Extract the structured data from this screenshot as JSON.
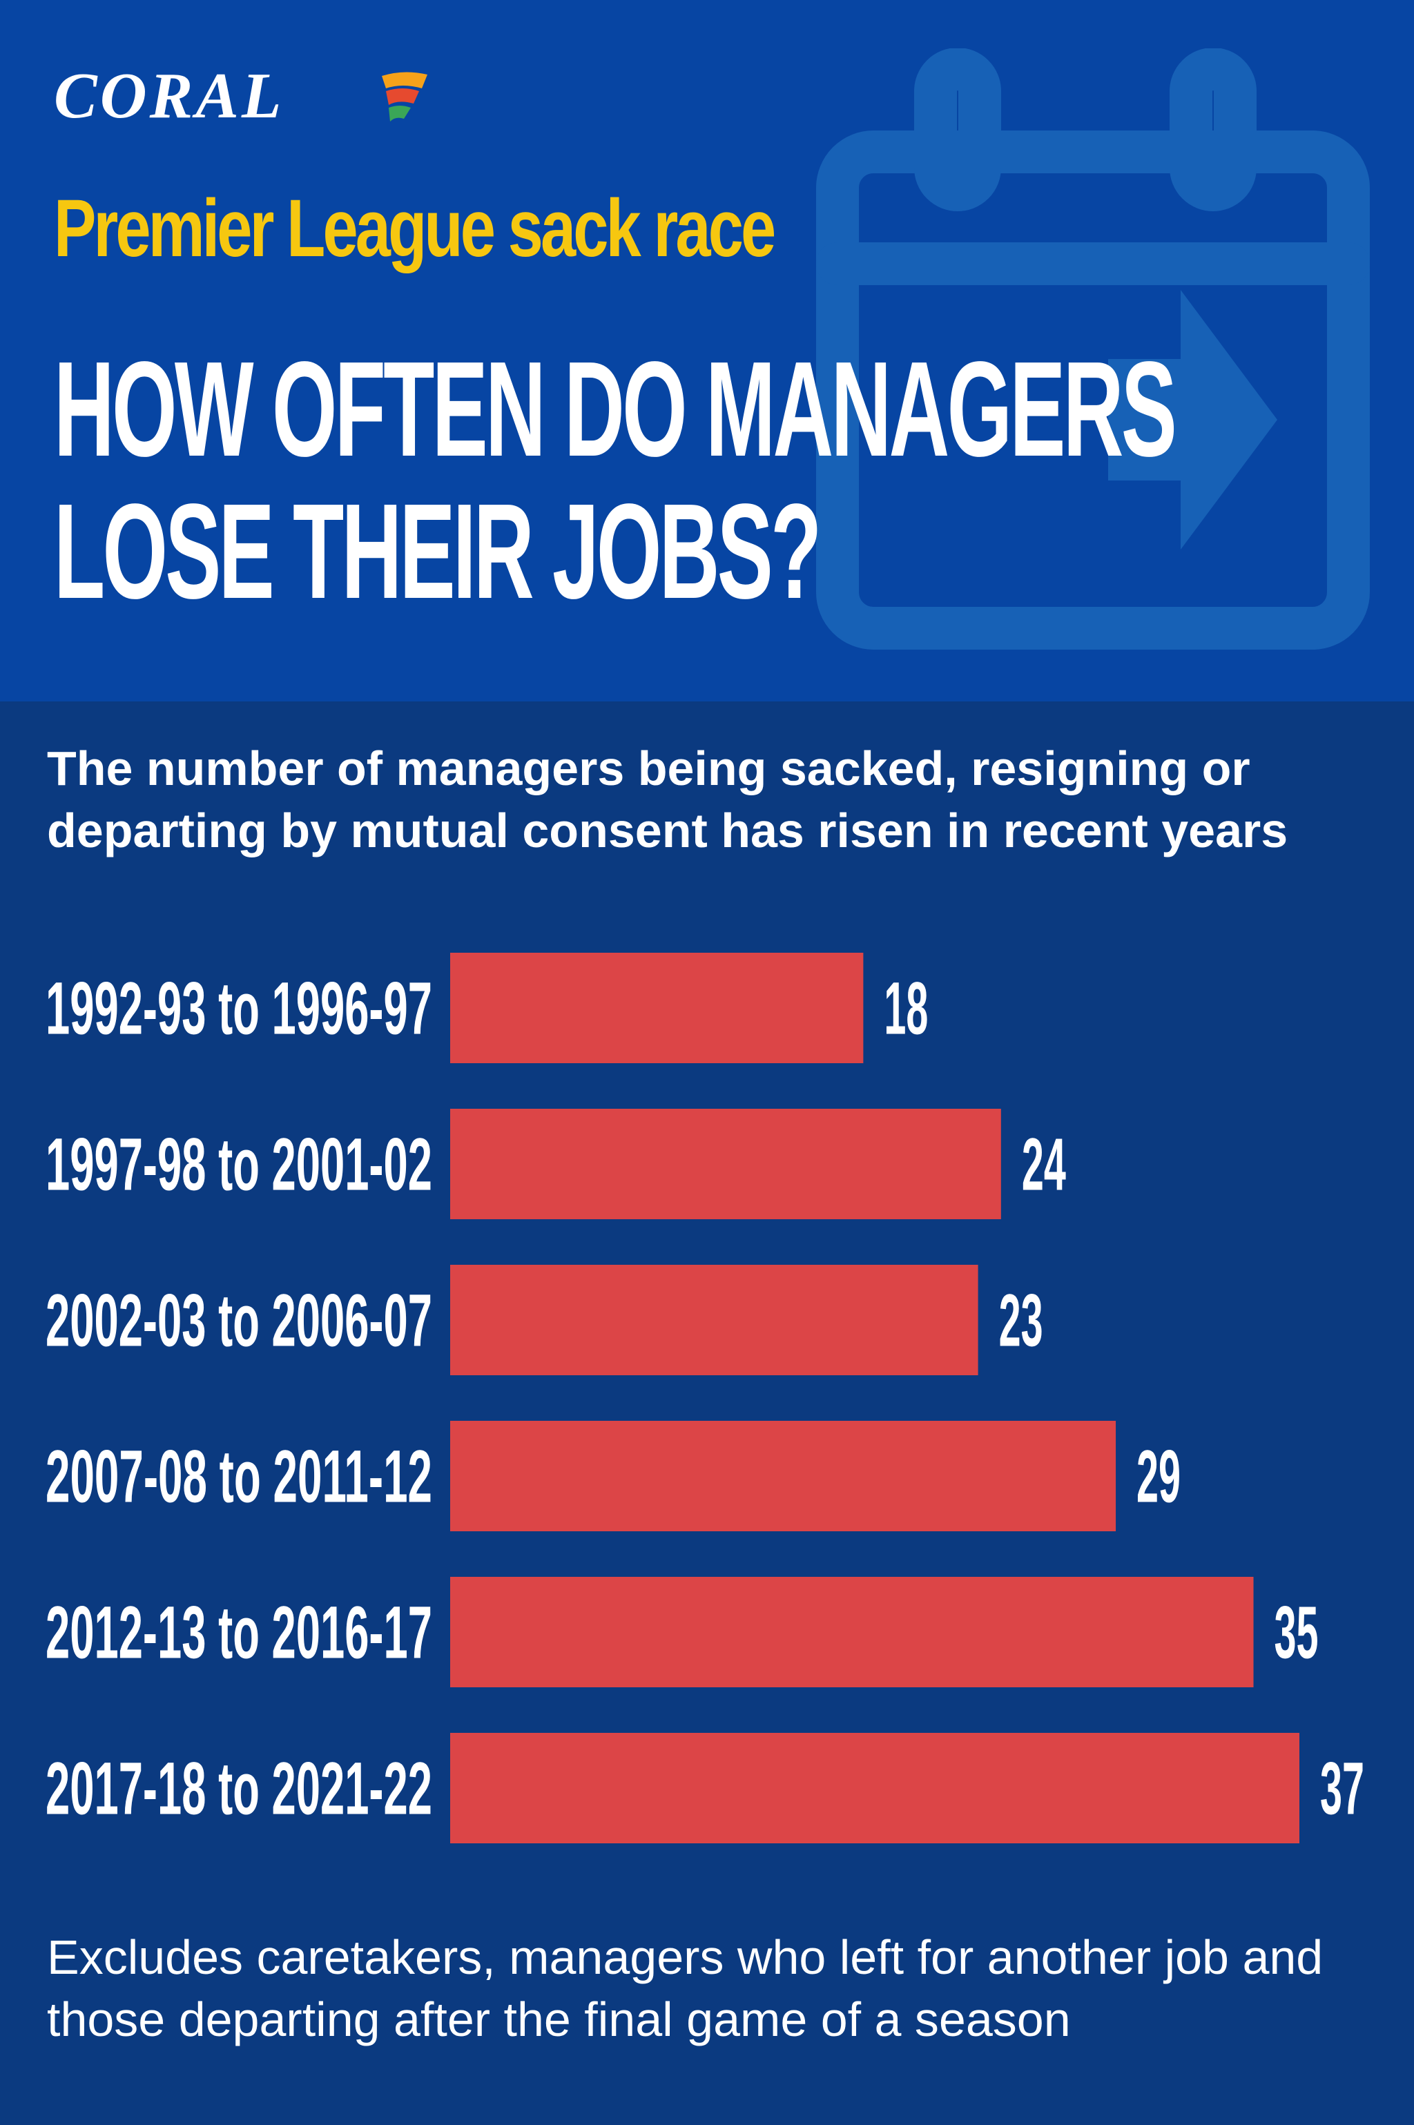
{
  "brand": {
    "logo_text": "CORAL"
  },
  "header": {
    "subtitle": "Premier League sack race",
    "title_line1": "HOW OFTEN DO MANAGERS",
    "title_line2": "LOSE THEIR JOBS?"
  },
  "intro": "The number of managers being sacked, resigning or departing by mutual consent has risen in recent years",
  "footnote": "Excludes caretakers, managers who left for another job and those departing after the final game of a season",
  "colors": {
    "header_bg": "#0745a3",
    "body_bg": "#0b3a80",
    "bar": "#dc4547",
    "subtitle": "#f6c710",
    "text": "#ffffff"
  },
  "icons": {
    "background": "calendar-arrow-icon",
    "logo_mark": "flag-icon"
  },
  "chart_data": {
    "type": "bar",
    "orientation": "horizontal",
    "categories": [
      "1992-93 to 1996-97",
      "1997-98 to 2001-02",
      "2002-03 to 2006-07",
      "2007-08 to 2011-12",
      "2012-13 to 2016-17",
      "2017-18 to 2021-22"
    ],
    "values": [
      18,
      24,
      23,
      29,
      35,
      37
    ],
    "xlim": [
      0,
      37
    ],
    "grid": false,
    "legend": "none",
    "data_labels": true
  }
}
